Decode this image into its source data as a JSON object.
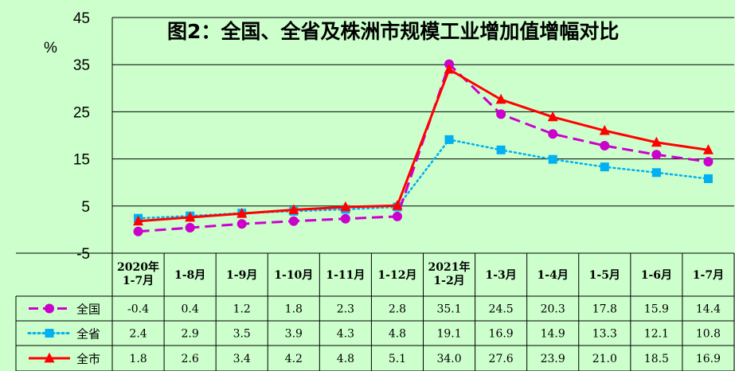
{
  "chart_data": {
    "type": "line",
    "title": "图2：全国、全省及株洲市规模工业增加值增幅对比",
    "ylabel": "%",
    "ylim": [
      -5,
      45
    ],
    "yticks": [
      -5,
      5,
      15,
      25,
      35,
      45
    ],
    "grid": true,
    "legend": "data-table",
    "categories": [
      [
        "2020年",
        "1-7月"
      ],
      [
        "1-8月"
      ],
      [
        "1-9月"
      ],
      [
        "1-10月"
      ],
      [
        "1-11月"
      ],
      [
        "1-12月"
      ],
      [
        "2021年",
        "1-2月"
      ],
      [
        "1-3月"
      ],
      [
        "1-4月"
      ],
      [
        "1-5月"
      ],
      [
        "1-6月"
      ],
      [
        "1-7月"
      ]
    ],
    "series": [
      {
        "name": "全国",
        "color": "#cc00cc",
        "style": "dashed",
        "marker": "circle",
        "values": [
          -0.4,
          0.4,
          1.2,
          1.8,
          2.3,
          2.8,
          35.1,
          24.5,
          20.3,
          17.8,
          15.9,
          14.4
        ]
      },
      {
        "name": "全省",
        "color": "#00b0f0",
        "style": "dotted",
        "marker": "square",
        "values": [
          2.4,
          2.9,
          3.5,
          3.9,
          4.3,
          4.8,
          19.1,
          16.9,
          14.9,
          13.3,
          12.1,
          10.8
        ]
      },
      {
        "name": "全市",
        "color": "#ff0000",
        "style": "solid",
        "marker": "triangle",
        "values": [
          1.8,
          2.6,
          3.4,
          4.2,
          4.8,
          5.1,
          34.0,
          27.6,
          23.9,
          21.0,
          18.5,
          16.9
        ]
      }
    ]
  }
}
